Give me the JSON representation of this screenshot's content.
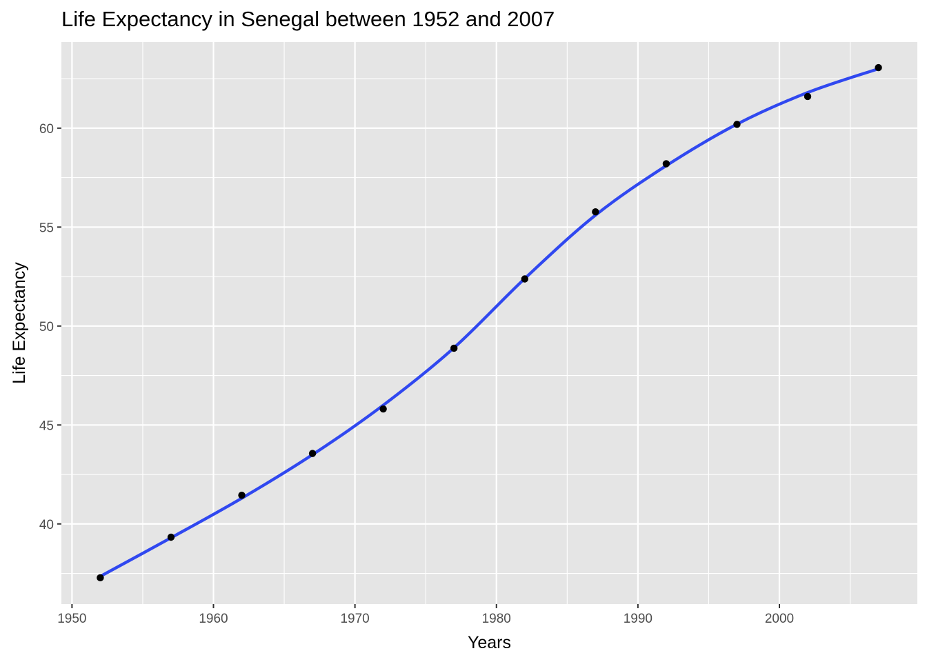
{
  "chart_data": {
    "type": "scatter",
    "title": "Life Expectancy in Senegal between 1952 and 2007",
    "xlabel": "Years",
    "ylabel": "Life Expectancy",
    "xlim": [
      1949.25,
      2009.75
    ],
    "ylim": [
      35.95,
      64.35
    ],
    "x_ticks": [
      1950,
      1960,
      1970,
      1980,
      1990,
      2000
    ],
    "y_ticks": [
      40,
      45,
      50,
      55,
      60
    ],
    "grid": true,
    "legend": "none",
    "colors": {
      "panel_background": "#e5e5e5",
      "grid_line": "#ffffff",
      "point": "#000000",
      "smooth_line": "#3048f0",
      "tick_text": "#4d4d4d",
      "label_text": "#000000"
    },
    "series": [
      {
        "kind": "points",
        "x": [
          1952,
          1957,
          1962,
          1967,
          1972,
          1977,
          1982,
          1987,
          1992,
          1997,
          2002,
          2007
        ],
        "y": [
          37.28,
          39.33,
          41.45,
          43.56,
          45.81,
          48.88,
          52.38,
          55.77,
          58.2,
          60.19,
          61.6,
          63.06
        ]
      },
      {
        "kind": "smooth",
        "x": [
          1952,
          1957,
          1962,
          1967,
          1972,
          1977,
          1982,
          1987,
          1992,
          1997,
          2002,
          2007
        ],
        "y": [
          37.35,
          39.3,
          41.3,
          43.5,
          46.0,
          48.9,
          52.4,
          55.6,
          58.1,
          60.2,
          61.8,
          63.0
        ]
      }
    ]
  }
}
